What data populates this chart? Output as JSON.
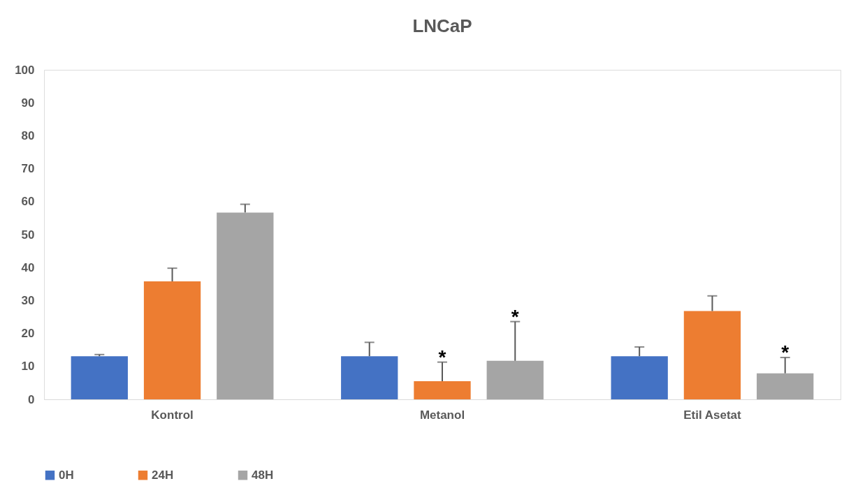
{
  "chart_data": {
    "type": "bar",
    "title": "LNCaP",
    "categories": [
      "Kontrol",
      "Metanol",
      "Etil Asetat"
    ],
    "series": [
      {
        "name": "0H",
        "color": "#4472c4",
        "values": [
          13.1,
          13.1,
          13.1
        ],
        "errors": [
          [
            13.1,
            13.6
          ],
          [
            13.1,
            17.3
          ],
          [
            13.1,
            15.9
          ]
        ]
      },
      {
        "name": "24H",
        "color": "#ed7d31",
        "values": [
          35.8,
          5.5,
          26.8
        ],
        "errors": [
          [
            35.8,
            39.8
          ],
          [
            5.5,
            11.3
          ],
          [
            26.8,
            31.4
          ]
        ]
      },
      {
        "name": "48H",
        "color": "#a5a5a5",
        "values": [
          56.7,
          11.7,
          7.9
        ],
        "errors": [
          [
            56.7,
            59.2
          ],
          [
            11.7,
            23.6
          ],
          [
            7.9,
            12.7
          ]
        ]
      }
    ],
    "ylim": [
      0,
      100
    ],
    "yticks": [
      0,
      10,
      20,
      30,
      40,
      50,
      60,
      70,
      80,
      90,
      100
    ],
    "grid": false,
    "legend": "bottom",
    "annotations": [
      "*",
      "*",
      "*"
    ]
  }
}
